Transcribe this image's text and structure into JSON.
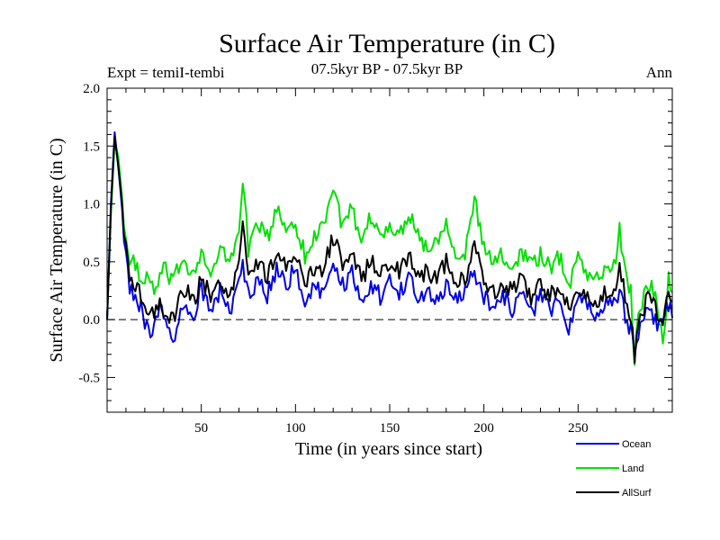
{
  "chart_data": {
    "type": "line",
    "title": "Surface Air Temperature (in C)",
    "subtitle": "07.5kyr BP - 07.5kyr BP",
    "left_label": "Expt = temiI-tembi",
    "right_label": "Ann",
    "xlabel": "Time (in years since start)",
    "ylabel": "Surface Air Temperature (in C)",
    "xlim": [
      0,
      300
    ],
    "ylim": [
      -0.8,
      2.0
    ],
    "x_ticks": [
      50,
      100,
      150,
      200,
      250
    ],
    "y_ticks": [
      -0.5,
      0.0,
      0.5,
      1.0,
      1.5,
      2.0
    ],
    "y_tick_labels": [
      "-0.5",
      "0.0",
      "0.5",
      "1.0",
      "1.5",
      "2.0"
    ],
    "zero_line": 0,
    "series": [
      {
        "name": "Land",
        "color": "#00e000",
        "keypoints": [
          [
            0,
            0.0
          ],
          [
            2,
            0.9
          ],
          [
            4,
            1.55
          ],
          [
            6,
            1.4
          ],
          [
            8,
            1.05
          ],
          [
            10,
            0.7
          ],
          [
            12,
            0.45
          ],
          [
            15,
            0.5
          ],
          [
            18,
            0.3
          ],
          [
            22,
            0.35
          ],
          [
            26,
            0.25
          ],
          [
            30,
            0.45
          ],
          [
            35,
            0.3
          ],
          [
            40,
            0.55
          ],
          [
            45,
            0.4
          ],
          [
            50,
            0.6
          ],
          [
            55,
            0.35
          ],
          [
            60,
            0.6
          ],
          [
            65,
            0.5
          ],
          [
            70,
            0.75
          ],
          [
            72,
            1.25
          ],
          [
            75,
            0.6
          ],
          [
            80,
            0.85
          ],
          [
            85,
            0.7
          ],
          [
            90,
            0.95
          ],
          [
            95,
            0.8
          ],
          [
            100,
            0.85
          ],
          [
            105,
            0.55
          ],
          [
            110,
            0.7
          ],
          [
            115,
            0.85
          ],
          [
            120,
            1.15
          ],
          [
            125,
            0.8
          ],
          [
            130,
            0.95
          ],
          [
            135,
            0.6
          ],
          [
            140,
            0.9
          ],
          [
            145,
            0.7
          ],
          [
            150,
            0.85
          ],
          [
            155,
            0.7
          ],
          [
            160,
            0.95
          ],
          [
            165,
            0.75
          ],
          [
            170,
            0.6
          ],
          [
            175,
            0.7
          ],
          [
            180,
            0.85
          ],
          [
            185,
            0.6
          ],
          [
            190,
            0.55
          ],
          [
            195,
            1.05
          ],
          [
            200,
            0.6
          ],
          [
            205,
            0.5
          ],
          [
            210,
            0.55
          ],
          [
            215,
            0.45
          ],
          [
            220,
            0.6
          ],
          [
            225,
            0.5
          ],
          [
            230,
            0.55
          ],
          [
            235,
            0.45
          ],
          [
            240,
            0.55
          ],
          [
            245,
            0.3
          ],
          [
            250,
            0.55
          ],
          [
            255,
            0.4
          ],
          [
            260,
            0.35
          ],
          [
            265,
            0.45
          ],
          [
            270,
            0.45
          ],
          [
            272,
            0.8
          ],
          [
            275,
            0.4
          ],
          [
            278,
            0.25
          ],
          [
            280,
            -0.4
          ],
          [
            282,
            0.1
          ],
          [
            285,
            0.2
          ],
          [
            288,
            0.3
          ],
          [
            292,
            0.15
          ],
          [
            295,
            -0.2
          ],
          [
            298,
            0.35
          ],
          [
            300,
            0.2
          ]
        ]
      },
      {
        "name": "Ocean",
        "color": "#0000e6",
        "keypoints": [
          [
            0,
            0.0
          ],
          [
            2,
            1.0
          ],
          [
            4,
            1.62
          ],
          [
            6,
            1.3
          ],
          [
            8,
            0.95
          ],
          [
            10,
            0.55
          ],
          [
            12,
            0.3
          ],
          [
            15,
            0.2
          ],
          [
            18,
            0.1
          ],
          [
            20,
            0.0
          ],
          [
            24,
            -0.1
          ],
          [
            28,
            0.1
          ],
          [
            32,
            -0.05
          ],
          [
            35,
            -0.18
          ],
          [
            38,
            0.05
          ],
          [
            42,
            0.15
          ],
          [
            46,
            0.05
          ],
          [
            50,
            0.25
          ],
          [
            55,
            0.1
          ],
          [
            60,
            0.25
          ],
          [
            65,
            0.05
          ],
          [
            70,
            0.35
          ],
          [
            72,
            0.45
          ],
          [
            75,
            0.2
          ],
          [
            80,
            0.35
          ],
          [
            85,
            0.2
          ],
          [
            90,
            0.45
          ],
          [
            95,
            0.3
          ],
          [
            100,
            0.45
          ],
          [
            105,
            0.15
          ],
          [
            110,
            0.3
          ],
          [
            115,
            0.2
          ],
          [
            120,
            0.45
          ],
          [
            125,
            0.3
          ],
          [
            130,
            0.4
          ],
          [
            135,
            0.15
          ],
          [
            140,
            0.3
          ],
          [
            145,
            0.2
          ],
          [
            150,
            0.35
          ],
          [
            155,
            0.25
          ],
          [
            160,
            0.35
          ],
          [
            165,
            0.2
          ],
          [
            170,
            0.25
          ],
          [
            175,
            0.15
          ],
          [
            180,
            0.3
          ],
          [
            185,
            0.2
          ],
          [
            190,
            0.25
          ],
          [
            195,
            0.4
          ],
          [
            200,
            0.2
          ],
          [
            205,
            0.1
          ],
          [
            210,
            0.2
          ],
          [
            215,
            0.1
          ],
          [
            220,
            0.2
          ],
          [
            225,
            0.05
          ],
          [
            230,
            0.2
          ],
          [
            235,
            0.1
          ],
          [
            240,
            0.15
          ],
          [
            245,
            -0.05
          ],
          [
            250,
            0.2
          ],
          [
            255,
            0.1
          ],
          [
            260,
            0.05
          ],
          [
            265,
            0.15
          ],
          [
            270,
            0.15
          ],
          [
            272,
            0.3
          ],
          [
            275,
            0.05
          ],
          [
            278,
            -0.1
          ],
          [
            280,
            -0.35
          ],
          [
            282,
            -0.15
          ],
          [
            285,
            0.0
          ],
          [
            288,
            0.1
          ],
          [
            292,
            -0.05
          ],
          [
            295,
            0.0
          ],
          [
            298,
            0.1
          ],
          [
            300,
            0.05
          ]
        ]
      },
      {
        "name": "AllSurf",
        "color": "#000000",
        "keypoints": [
          [
            0,
            0.0
          ],
          [
            2,
            0.95
          ],
          [
            4,
            1.58
          ],
          [
            6,
            1.32
          ],
          [
            8,
            1.0
          ],
          [
            10,
            0.6
          ],
          [
            12,
            0.35
          ],
          [
            15,
            0.3
          ],
          [
            18,
            0.2
          ],
          [
            20,
            0.1
          ],
          [
            24,
            0.05
          ],
          [
            28,
            0.15
          ],
          [
            32,
            0.05
          ],
          [
            35,
            0.0
          ],
          [
            38,
            0.15
          ],
          [
            42,
            0.25
          ],
          [
            46,
            0.15
          ],
          [
            50,
            0.35
          ],
          [
            55,
            0.2
          ],
          [
            60,
            0.35
          ],
          [
            65,
            0.2
          ],
          [
            70,
            0.5
          ],
          [
            72,
            0.8
          ],
          [
            75,
            0.35
          ],
          [
            80,
            0.5
          ],
          [
            85,
            0.35
          ],
          [
            90,
            0.6
          ],
          [
            95,
            0.45
          ],
          [
            100,
            0.55
          ],
          [
            105,
            0.3
          ],
          [
            110,
            0.45
          ],
          [
            115,
            0.45
          ],
          [
            120,
            0.7
          ],
          [
            125,
            0.5
          ],
          [
            130,
            0.6
          ],
          [
            135,
            0.35
          ],
          [
            140,
            0.5
          ],
          [
            145,
            0.4
          ],
          [
            150,
            0.5
          ],
          [
            155,
            0.4
          ],
          [
            160,
            0.55
          ],
          [
            165,
            0.4
          ],
          [
            170,
            0.4
          ],
          [
            175,
            0.35
          ],
          [
            180,
            0.5
          ],
          [
            185,
            0.35
          ],
          [
            190,
            0.35
          ],
          [
            195,
            0.65
          ],
          [
            200,
            0.35
          ],
          [
            205,
            0.25
          ],
          [
            210,
            0.3
          ],
          [
            215,
            0.25
          ],
          [
            220,
            0.35
          ],
          [
            225,
            0.2
          ],
          [
            230,
            0.3
          ],
          [
            235,
            0.2
          ],
          [
            240,
            0.3
          ],
          [
            245,
            0.1
          ],
          [
            250,
            0.3
          ],
          [
            255,
            0.2
          ],
          [
            260,
            0.15
          ],
          [
            265,
            0.25
          ],
          [
            270,
            0.25
          ],
          [
            272,
            0.45
          ],
          [
            275,
            0.2
          ],
          [
            278,
            0.05
          ],
          [
            280,
            -0.3
          ],
          [
            282,
            -0.05
          ],
          [
            285,
            0.1
          ],
          [
            288,
            0.2
          ],
          [
            292,
            0.05
          ],
          [
            295,
            -0.05
          ],
          [
            298,
            0.2
          ],
          [
            300,
            0.1
          ]
        ]
      }
    ],
    "legend": {
      "placement": "bottom-right",
      "entries": [
        {
          "name": "Ocean",
          "color": "#0000e6"
        },
        {
          "name": "Land",
          "color": "#00e000"
        },
        {
          "name": "AllSurf",
          "color": "#000000"
        }
      ]
    }
  }
}
